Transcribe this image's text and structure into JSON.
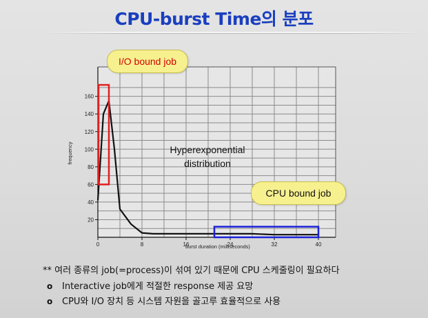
{
  "title": "CPU-burst Time의 분포",
  "chart_data": {
    "type": "line",
    "xlabel": "burst duration (milliseconds)",
    "ylabel": "frequency",
    "xlim": [
      0,
      40
    ],
    "ylim": [
      0,
      170
    ],
    "x_ticks": [
      "0",
      "8",
      "16",
      "24",
      "32",
      "40"
    ],
    "y_ticks": [
      "20",
      "40",
      "60",
      "80",
      "100",
      "120",
      "140",
      "160"
    ],
    "grid": true,
    "series": [
      {
        "x": [
          0,
          1,
          2,
          3,
          4,
          6,
          8,
          10,
          16,
          20,
          24,
          28,
          32,
          36,
          40
        ],
        "y": [
          42,
          140,
          155,
          100,
          32,
          15,
          5,
          4,
          4,
          4,
          4,
          4,
          3,
          3,
          3
        ]
      }
    ],
    "annotations": {
      "center_text_line1": "Hyperexponential",
      "center_text_line2": "distribution",
      "io_callout": "I/O bound job",
      "cpu_callout": "CPU bound job"
    },
    "highlight_boxes": [
      {
        "label": "io",
        "color": "#e02020",
        "x_range": [
          0,
          2
        ],
        "y_range": [
          60,
          173
        ]
      },
      {
        "label": "cpu",
        "color": "#1a22d8",
        "x_range": [
          21,
          40
        ],
        "y_range": [
          0,
          12
        ]
      }
    ]
  },
  "notes": {
    "line1": "** 여러 종류의 job(=process)이 섞여 있기 때문에 CPU 스케줄링이 필요하다",
    "line2_bullet": "o",
    "line2": "Interactive job에게 적절한 response 제공 요망",
    "line3_bullet": "o",
    "line3": "CPU와 I/O 장치 등 시스템 자원을 골고루 효율적으로 사용"
  }
}
